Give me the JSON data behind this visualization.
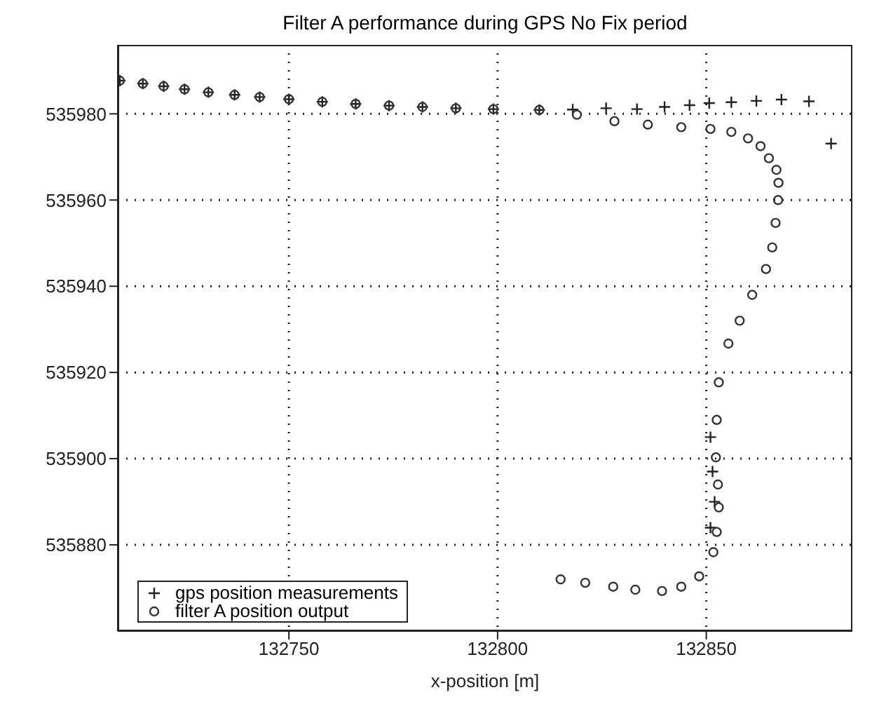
{
  "chart_data": {
    "type": "scatter",
    "title": "Filter A performance during GPS No Fix period",
    "xlabel": "x-position [m]",
    "xlim": [
      132709,
      132885
    ],
    "xticks": [
      132750,
      132800,
      132850
    ],
    "ylim": [
      535860,
      535996
    ],
    "yticks": [
      535880,
      535900,
      535920,
      535940,
      535960,
      535980
    ],
    "grid": true,
    "legend": "bottom left",
    "series": [
      {
        "name": "gps position measurements",
        "color": "#222222",
        "marker": "cross",
        "x": [
          132709.5,
          132715,
          132720,
          132725,
          132730.7,
          132737,
          132743,
          132750,
          132758,
          132766,
          132774,
          132782,
          132790,
          132799,
          132810,
          132818,
          132826,
          132833.4,
          132840,
          132846,
          132850.7,
          132856,
          132862,
          132868,
          132874.6,
          132879.9,
          132851,
          132851.5,
          132852,
          132851
        ],
        "values": [
          535987.7,
          535987,
          535986.4,
          535985.7,
          535985,
          535984.4,
          535983.9,
          535983.4,
          535982.8,
          535982.3,
          535981.9,
          535981.6,
          535981.3,
          535981.1,
          535980.9,
          535981,
          535981.3,
          535981.1,
          535981.6,
          535982,
          535982.5,
          535982.7,
          535983,
          535983.3,
          535982.9,
          535973.1,
          535905,
          535897,
          535890,
          535884
        ]
      },
      {
        "name": "filter A position output",
        "color": "#333333",
        "marker": "circle",
        "x": [
          132709.5,
          132715,
          132720,
          132725,
          132730.7,
          132737,
          132743,
          132750,
          132758,
          132766,
          132774,
          132782,
          132790,
          132799,
          132810,
          132819,
          132828,
          132836,
          132844,
          132851,
          132856,
          132860,
          132863,
          132865,
          132866.8,
          132867.3,
          132867.2,
          132866.6,
          132865.8,
          132864.3,
          132861,
          132858,
          132855.3,
          132853,
          132852.5,
          132852.3,
          132852.8,
          132853,
          132852.5,
          132851.7,
          132848.3,
          132844,
          132839.4,
          132833,
          132827.7,
          132821,
          132815.1
        ],
        "values": [
          535987.7,
          535987,
          535986.4,
          535985.7,
          535985,
          535984.4,
          535983.9,
          535983.4,
          535982.8,
          535982.3,
          535981.9,
          535981.6,
          535981.3,
          535981.1,
          535980.9,
          535979.8,
          535978.3,
          535977.5,
          535976.9,
          535976.5,
          535975.8,
          535974.3,
          535972.5,
          535969.7,
          535967,
          535964,
          535960,
          535954.7,
          535949,
          535944,
          535938,
          535932,
          535926.7,
          535917.7,
          535909,
          535900.3,
          535894,
          535888.7,
          535883,
          535878.3,
          535872.7,
          535870.3,
          535869.3,
          535869.6,
          535870.3,
          535871.2,
          535872
        ]
      }
    ]
  }
}
